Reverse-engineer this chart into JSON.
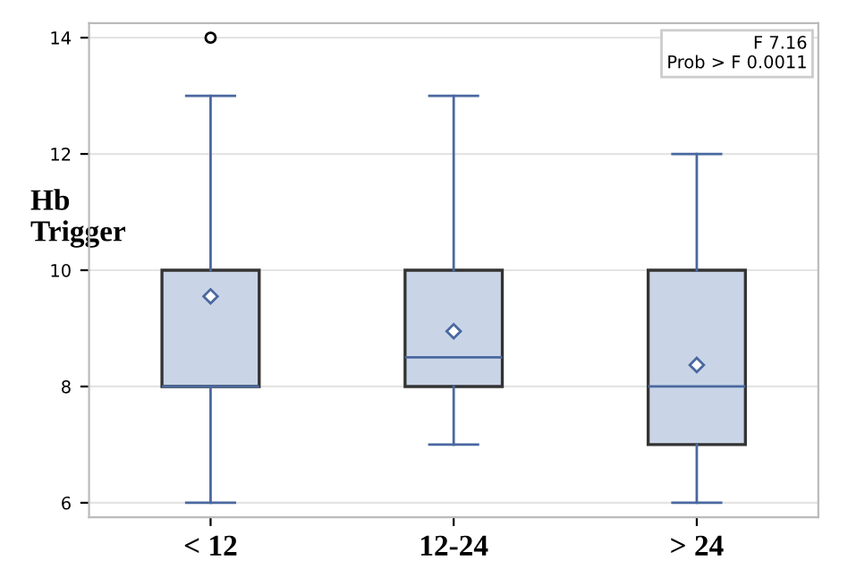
{
  "chart_data": {
    "type": "box",
    "ylabel": "Hb\nTrigger",
    "categories": [
      "< 12",
      "12-24",
      "> 24"
    ],
    "boxes": [
      {
        "low": 6,
        "q1": 8,
        "median": 8,
        "q3": 10,
        "high": 13,
        "mean": 9.55,
        "outliers": [
          14
        ]
      },
      {
        "low": 7,
        "q1": 8,
        "median": 8.5,
        "q3": 10,
        "high": 13,
        "mean": 8.95
      },
      {
        "low": 6,
        "q1": 7,
        "median": 8,
        "q3": 10,
        "high": 12,
        "mean": 8.37
      }
    ],
    "color": "#c9d5e7",
    "ylim": [
      5.75,
      14.25
    ],
    "yticks": [
      6,
      8,
      10,
      12,
      14
    ],
    "grid": "y",
    "annotations": [
      "F 7.16",
      "Prob > F 0.0011"
    ]
  }
}
